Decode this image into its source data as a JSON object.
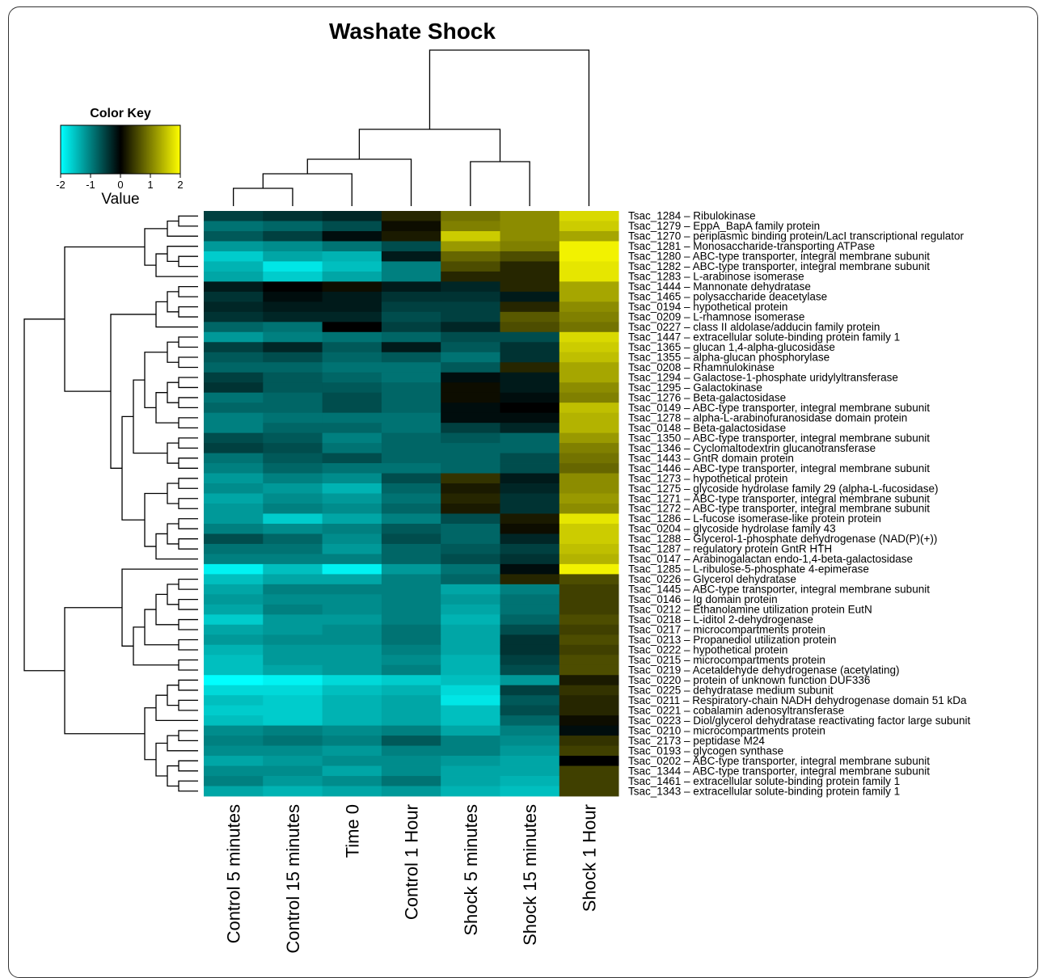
{
  "chart_data": {
    "type": "heatmap",
    "title": "Washate Shock",
    "color_key": {
      "title": "Color Key",
      "label": "Value",
      "ticks": [
        "-2",
        "-1",
        "0",
        "1",
        "2"
      ],
      "range": [
        -2,
        2
      ],
      "colors": {
        "low": "#00ffff",
        "mid": "#000000",
        "high": "#ffff00"
      }
    },
    "columns": [
      "Control 5 minutes",
      "Control 15 minutes",
      "Time 0",
      "Control 1 Hour",
      "Shock 5 minutes",
      "Shock 15 minutes",
      "Shock 1 Hour"
    ],
    "rows": [
      "Tsac_1284 – Ribulokinase",
      "Tsac_1279 – EppA_BapA family protein",
      "Tsac_1270 – periplasmic binding protein/LacI transcriptional regulator",
      "Tsac_1281 – Monosaccharide-transporting ATPase",
      "Tsac_1280 – ABC-type transporter, integral membrane subunit",
      "Tsac_1282 – ABC-type transporter, integral membrane subunit",
      "Tsac_1283 – L-arabinose isomerase",
      "Tsac_1444 – Mannonate dehydratase",
      "Tsac_1465 – polysaccharide deacetylase",
      "Tsac_0194 – hypothetical protein",
      "Tsac_0209 – L-rhamnose isomerase",
      "Tsac_0227 – class II aldolase/adducin family protein",
      "Tsac_1447 – extracellular solute-binding protein family 1",
      "Tsac_1365 – glucan 1,4-alpha-glucosidase",
      "Tsac_1355 – alpha-glucan phosphorylase",
      "Tsac_0208 – Rhamnulokinase",
      "Tsac_1294 – Galactose-1-phosphate uridylyltransferase",
      "Tsac_1295 – Galactokinase",
      "Tsac_1276 – Beta-galactosidase",
      "Tsac_0149 – ABC-type transporter, integral membrane subunit",
      "Tsac_1278 – alpha-L-arabinofuranosidase domain protein",
      "Tsac_0148 – Beta-galactosidase",
      "Tsac_1350 – ABC-type transporter, integral membrane subunit",
      "Tsac_1346 – Cyclomaltodextrin glucanotransferase",
      "Tsac_1443 – GntR domain protein",
      "Tsac_1446 – ABC-type transporter, integral membrane subunit",
      "Tsac_1273 – hypothetical protein",
      "Tsac_1275 – glycoside hydrolase family 29 (alpha-L-fucosidase)",
      "Tsac_1271 – ABC-type transporter, integral membrane subunit",
      "Tsac_1272 – ABC-type transporter, integral membrane subunit",
      "Tsac_1286 – L-fucose isomerase-like protein protein",
      "Tsac_0204 – glycoside hydrolase family 43",
      "Tsac_1288 – Glycerol-1-phosphate dehydrogenase (NAD(P)(+))",
      "Tsac_1287 – regulatory protein GntR HTH",
      "Tsac_0147 – Arabinogalactan endo-1,4-beta-galactosidase",
      "Tsac_1285 – L-ribulose-5-phosphate 4-epimerase",
      "Tsac_0226 – Glycerol dehydratase",
      "Tsac_1445 – ABC-type transporter, integral membrane subunit",
      "Tsac_0146 – Ig domain protein",
      "Tsac_0212 – Ethanolamine utilization protein EutN",
      "Tsac_0218 – L-iditol 2-dehydrogenase",
      "Tsac_0217 – microcompartments protein",
      "Tsac_0213 – Propanediol utilization protein",
      "Tsac_0222 – hypothetical protein",
      "Tsac_0215 – microcompartments protein",
      "Tsac_0219 – Acetaldehyde dehydrogenase (acetylating)",
      "Tsac_0220 – protein of unknown function DUF336",
      "Tsac_0225 – dehydratase medium subunit",
      "Tsac_0211 – Respiratory-chain NADH dehydrogenase domain 51 kDa",
      "Tsac_0221 – cobalamin adenosyltransferase",
      "Tsac_0223 – Diol/glycerol dehydratase reactivating factor large subunit",
      "Tsac_0210 – microcompartments protein",
      "Tsac_2173 – peptidase M24",
      "Tsac_0193 – glycogen synthase",
      "Tsac_0202 – ABC-type transporter, integral membrane subunit",
      "Tsac_1344 – ABC-type transporter, integral membrane subunit",
      "Tsac_1461 – extracellular solute-binding protein family 1",
      "Tsac_1343 – extracellular solute-binding protein family 1"
    ],
    "values": [
      [
        -0.5,
        -0.4,
        -0.3,
        0.3,
        0.9,
        1.1,
        1.7
      ],
      [
        -0.9,
        -0.8,
        -0.6,
        0.1,
        1.0,
        1.1,
        1.6
      ],
      [
        -0.7,
        -0.5,
        -0.1,
        0.2,
        1.6,
        1.1,
        1.3
      ],
      [
        -1.2,
        -1.1,
        -0.9,
        -0.6,
        1.2,
        1.0,
        1.9
      ],
      [
        -1.6,
        -1.3,
        -1.4,
        -0.2,
        0.8,
        0.6,
        1.9
      ],
      [
        -1.4,
        -1.8,
        -1.5,
        -1.0,
        0.6,
        0.3,
        1.8
      ],
      [
        -1.3,
        -1.6,
        -1.3,
        -1.0,
        0.3,
        0.3,
        1.8
      ],
      [
        -0.2,
        0.0,
        0.1,
        -0.2,
        -0.3,
        0.3,
        1.3
      ],
      [
        -0.4,
        -0.1,
        -0.2,
        -0.4,
        -0.4,
        -0.2,
        1.3
      ],
      [
        -0.3,
        -0.2,
        -0.2,
        -0.5,
        -0.5,
        0.3,
        1.1
      ],
      [
        -0.4,
        -0.3,
        -0.3,
        -0.6,
        -0.5,
        0.7,
        1.0
      ],
      [
        -0.8,
        -0.9,
        0.0,
        -0.5,
        -0.3,
        0.6,
        0.9
      ],
      [
        -1.2,
        -1.0,
        -0.9,
        -0.8,
        -0.6,
        -0.6,
        1.7
      ],
      [
        -0.5,
        -0.3,
        -0.7,
        -0.2,
        -0.7,
        -0.4,
        1.6
      ],
      [
        -0.7,
        -0.6,
        -0.8,
        -0.7,
        -0.9,
        -0.4,
        1.5
      ],
      [
        -0.8,
        -0.8,
        -0.9,
        -0.9,
        -0.7,
        0.3,
        1.3
      ],
      [
        -0.5,
        -0.7,
        -0.8,
        -0.9,
        -0.1,
        -0.2,
        1.3
      ],
      [
        -0.4,
        -0.7,
        -0.7,
        -0.8,
        0.1,
        -0.2,
        1.1
      ],
      [
        -0.9,
        -0.8,
        -0.6,
        -0.8,
        0.1,
        -0.1,
        1.0
      ],
      [
        -0.8,
        -0.8,
        -0.6,
        -0.8,
        -0.1,
        0.0,
        1.5
      ],
      [
        -1.0,
        -0.9,
        -0.9,
        -0.9,
        -0.1,
        -0.1,
        1.4
      ],
      [
        -1.0,
        -0.8,
        -0.8,
        -0.9,
        -0.5,
        -0.3,
        1.4
      ],
      [
        -0.6,
        -0.7,
        -1.0,
        -0.8,
        -0.7,
        -0.8,
        1.2
      ],
      [
        -0.5,
        -0.6,
        -0.9,
        -0.8,
        -0.8,
        -0.8,
        1.0
      ],
      [
        -0.9,
        -0.7,
        -0.6,
        -0.8,
        -0.8,
        -0.6,
        0.9
      ],
      [
        -1.0,
        -0.8,
        -0.9,
        -0.9,
        -0.8,
        -0.6,
        0.8
      ],
      [
        -1.2,
        -1.0,
        -1.1,
        -0.6,
        0.4,
        -0.2,
        1.1
      ],
      [
        -1.1,
        -1.2,
        -1.4,
        -0.8,
        0.2,
        -0.3,
        1.1
      ],
      [
        -1.3,
        -1.1,
        -1.2,
        -0.9,
        0.3,
        -0.4,
        1.2
      ],
      [
        -1.2,
        -1.0,
        -1.1,
        -0.8,
        0.2,
        -0.4,
        1.1
      ],
      [
        -1.2,
        -1.6,
        -1.3,
        -1.0,
        -0.6,
        0.2,
        1.8
      ],
      [
        -1.0,
        -1.1,
        -1.0,
        -0.7,
        -0.8,
        0.1,
        1.6
      ],
      [
        -0.6,
        -0.8,
        -1.1,
        -0.6,
        -0.8,
        -0.3,
        1.6
      ],
      [
        -0.9,
        -0.9,
        -1.2,
        -0.8,
        -0.7,
        -0.5,
        1.5
      ],
      [
        -1.0,
        -1.0,
        -1.0,
        -0.8,
        -0.6,
        -0.4,
        1.4
      ],
      [
        -1.9,
        -1.5,
        -1.9,
        -1.2,
        -0.9,
        -0.1,
        1.9
      ],
      [
        -1.5,
        -1.3,
        -1.3,
        -1.0,
        -0.8,
        0.3,
        0.6
      ],
      [
        -1.3,
        -1.0,
        -1.0,
        -1.0,
        -1.3,
        -1.0,
        0.5
      ],
      [
        -1.2,
        -1.1,
        -1.1,
        -1.0,
        -1.2,
        -0.9,
        0.5
      ],
      [
        -1.3,
        -1.0,
        -1.1,
        -1.0,
        -1.3,
        -0.9,
        0.5
      ],
      [
        -1.6,
        -1.2,
        -1.2,
        -1.0,
        -1.4,
        -0.8,
        0.6
      ],
      [
        -1.3,
        -1.2,
        -1.1,
        -0.9,
        -1.3,
        -0.6,
        0.5
      ],
      [
        -1.2,
        -1.1,
        -1.1,
        -0.9,
        -1.3,
        -0.4,
        0.6
      ],
      [
        -1.4,
        -1.2,
        -1.2,
        -1.0,
        -1.3,
        -0.4,
        0.5
      ],
      [
        -1.5,
        -1.2,
        -1.2,
        -1.1,
        -1.4,
        -0.5,
        0.6
      ],
      [
        -1.5,
        -1.3,
        -1.2,
        -1.0,
        -1.4,
        -0.6,
        0.6
      ],
      [
        -2.0,
        -1.9,
        -1.7,
        -1.6,
        -1.5,
        -1.2,
        0.2
      ],
      [
        -1.7,
        -1.7,
        -1.5,
        -1.4,
        -1.7,
        -0.5,
        0.4
      ],
      [
        -1.5,
        -1.6,
        -1.4,
        -1.3,
        -1.8,
        -0.7,
        0.3
      ],
      [
        -1.6,
        -1.6,
        -1.4,
        -1.3,
        -1.5,
        -0.6,
        0.3
      ],
      [
        -1.5,
        -1.6,
        -1.4,
        -1.3,
        -1.5,
        -0.8,
        0.1
      ],
      [
        -1.1,
        -1.0,
        -1.1,
        -1.0,
        -1.3,
        -1.0,
        -0.1
      ],
      [
        -1.0,
        -0.9,
        -1.0,
        -0.7,
        -1.0,
        -1.1,
        0.4
      ],
      [
        -1.1,
        -1.1,
        -1.2,
        -1.0,
        -1.0,
        -1.2,
        0.5
      ],
      [
        -1.3,
        -1.2,
        -1.1,
        -1.1,
        -1.2,
        -1.3,
        0.0
      ],
      [
        -1.1,
        -1.1,
        -1.3,
        -1.1,
        -1.3,
        -1.3,
        0.5
      ],
      [
        -1.0,
        -1.2,
        -1.1,
        -0.9,
        -1.3,
        -1.4,
        0.5
      ],
      [
        -1.3,
        -1.4,
        -1.3,
        -1.2,
        -1.4,
        -1.5,
        0.5
      ]
    ]
  }
}
